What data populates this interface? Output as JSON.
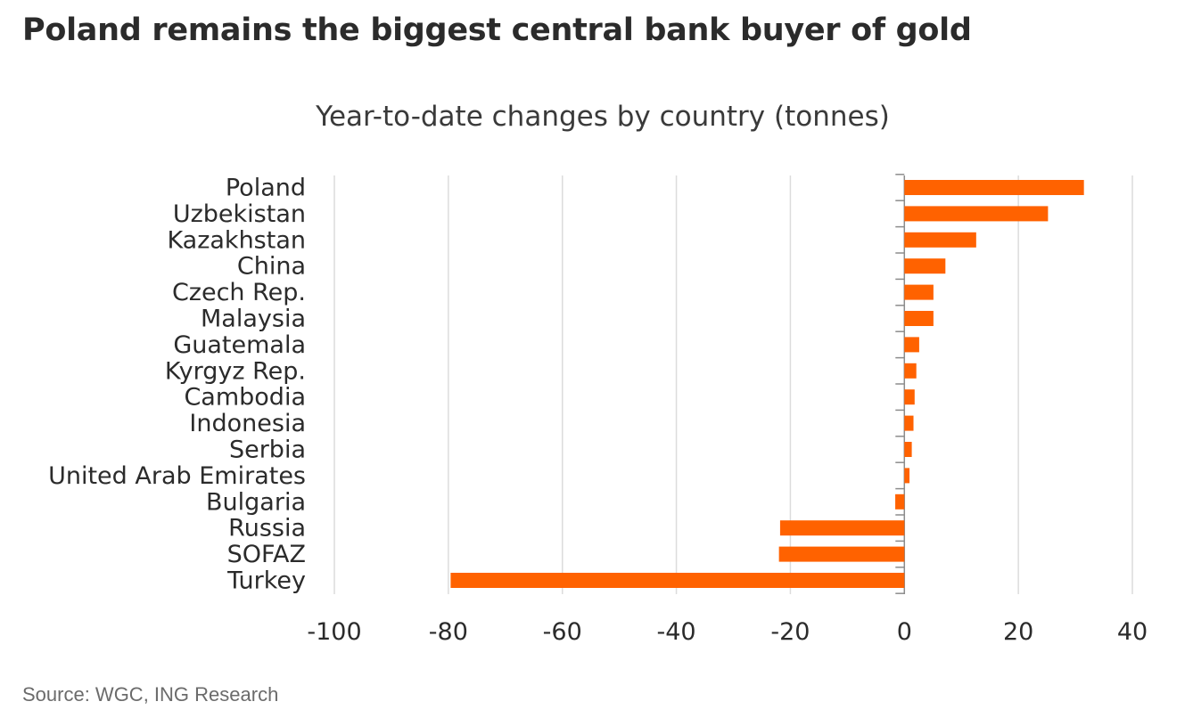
{
  "header": {
    "title": "Poland remains the biggest central bank buyer of gold"
  },
  "chart_data": {
    "type": "bar",
    "orientation": "horizontal",
    "title": "Year-to-date changes by country (tonnes)",
    "xlabel": "",
    "ylabel": "",
    "categories": [
      "Poland",
      "Uzbekistan",
      "Kazakhstan",
      "China",
      "Czech Rep.",
      "Malaysia",
      "Guatemala",
      "Kyrgyz Rep.",
      "Cambodia",
      "Indonesia",
      "Serbia",
      "United Arab Emirates",
      "Bulgaria",
      "Russia",
      "SOFAZ",
      "Turkey"
    ],
    "values": [
      31.5,
      25.2,
      12.6,
      7.2,
      5.1,
      5.1,
      2.6,
      2.1,
      1.8,
      1.6,
      1.3,
      0.9,
      -1.6,
      -21.8,
      -22.0,
      -79.6
    ],
    "xlim": [
      -100,
      40
    ],
    "xticks": [
      -100,
      -80,
      -60,
      -40,
      -20,
      0,
      20,
      40
    ],
    "xtick_labels": [
      "-100",
      "-80",
      "-60",
      "-40",
      "-20",
      "0",
      "20",
      "40"
    ],
    "grid": "vertical",
    "legend": "none",
    "bar_color": "#ff6200"
  },
  "footer": {
    "source": "Source: WGC, ING Research"
  }
}
